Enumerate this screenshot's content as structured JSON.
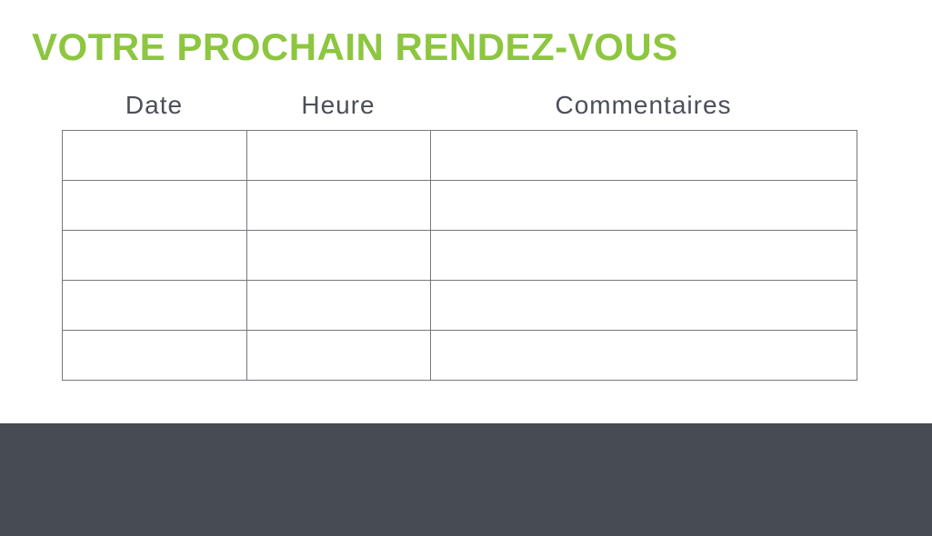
{
  "page": {
    "title": "VOTRE PROCHAIN RENDEZ-VOUS"
  },
  "colors": {
    "accent_green": "#8DC63F",
    "footer_dark": "#474B54",
    "table_border": "#75787E",
    "header_text": "#4B4F58"
  },
  "table": {
    "columns": [
      {
        "label": "Date"
      },
      {
        "label": "Heure"
      },
      {
        "label": "Commentaires"
      }
    ],
    "rows": [
      [
        "",
        "",
        ""
      ],
      [
        "",
        "",
        ""
      ],
      [
        "",
        "",
        ""
      ],
      [
        "",
        "",
        ""
      ],
      [
        "",
        "",
        ""
      ]
    ]
  }
}
